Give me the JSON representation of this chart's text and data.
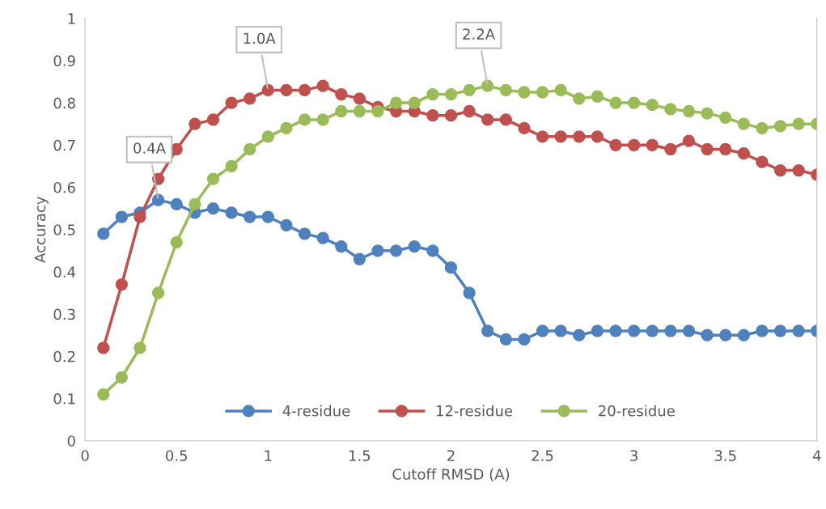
{
  "chart_data": {
    "type": "line",
    "xlabel": "Cutoff RMSD (A)",
    "ylabel": "Accuracy",
    "x": [
      0.1,
      0.2,
      0.3,
      0.4,
      0.5,
      0.6,
      0.7,
      0.8,
      0.9,
      1.0,
      1.1,
      1.2,
      1.3,
      1.4,
      1.5,
      1.6,
      1.7,
      1.8,
      1.9,
      2.0,
      2.1,
      2.2,
      2.3,
      2.4,
      2.5,
      2.6,
      2.7,
      2.8,
      2.9,
      3.0,
      3.1,
      3.2,
      3.3,
      3.4,
      3.5,
      3.6,
      3.7,
      3.8,
      3.9,
      4.0
    ],
    "series": [
      {
        "name": "4-residue",
        "color": "#4e81bd",
        "values": [
          0.49,
          0.53,
          0.54,
          0.57,
          0.56,
          0.54,
          0.55,
          0.54,
          0.53,
          0.53,
          0.51,
          0.49,
          0.48,
          0.46,
          0.43,
          0.45,
          0.45,
          0.46,
          0.45,
          0.41,
          0.35,
          0.26,
          0.24,
          0.24,
          0.26,
          0.26,
          0.25,
          0.26,
          0.26,
          0.26,
          0.26,
          0.26,
          0.26,
          0.25,
          0.25,
          0.25,
          0.26,
          0.26,
          0.26,
          0.26
        ]
      },
      {
        "name": "12-residue",
        "color": "#c0504d",
        "values": [
          0.22,
          0.37,
          0.53,
          0.62,
          0.69,
          0.75,
          0.76,
          0.8,
          0.81,
          0.83,
          0.83,
          0.83,
          0.84,
          0.82,
          0.81,
          0.79,
          0.78,
          0.78,
          0.77,
          0.77,
          0.78,
          0.76,
          0.76,
          0.74,
          0.72,
          0.72,
          0.72,
          0.72,
          0.7,
          0.7,
          0.7,
          0.69,
          0.71,
          0.69,
          0.69,
          0.68,
          0.66,
          0.64,
          0.64,
          0.63
        ]
      },
      {
        "name": "20-residue",
        "color": "#9bbb59",
        "values": [
          0.11,
          0.15,
          0.22,
          0.35,
          0.47,
          0.56,
          0.62,
          0.65,
          0.69,
          0.72,
          0.74,
          0.76,
          0.76,
          0.78,
          0.78,
          0.78,
          0.8,
          0.8,
          0.82,
          0.82,
          0.83,
          0.84,
          0.83,
          0.825,
          0.825,
          0.83,
          0.81,
          0.815,
          0.8,
          0.8,
          0.795,
          0.785,
          0.78,
          0.775,
          0.765,
          0.75,
          0.74,
          0.745,
          0.75,
          0.75
        ]
      }
    ],
    "annotations": [
      {
        "text": "0.4A",
        "x": 0.4,
        "y": 0.57
      },
      {
        "text": "1.0A",
        "x": 1.0,
        "y": 0.83
      },
      {
        "text": "2.2A",
        "x": 2.2,
        "y": 0.84
      }
    ],
    "xlim": [
      0,
      4
    ],
    "xticks": [
      0,
      0.5,
      1,
      1.5,
      2,
      2.5,
      3,
      3.5,
      4
    ],
    "ylim": [
      0,
      1
    ],
    "yticks": [
      0,
      0.1,
      0.2,
      0.3,
      0.4,
      0.5,
      0.6,
      0.7,
      0.8,
      0.9,
      1
    ],
    "marker": "circle",
    "line_style": "solid",
    "legend": "bottom",
    "grid": false
  }
}
